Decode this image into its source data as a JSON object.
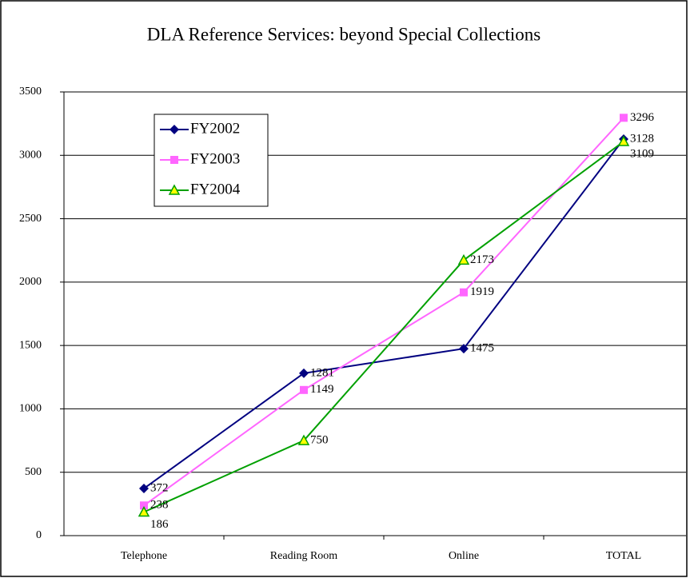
{
  "chart_data": {
    "type": "line",
    "title": "DLA Reference Services: beyond Special Collections",
    "categories": [
      "Telephone",
      "Reading Room",
      "Online",
      "TOTAL"
    ],
    "series": [
      {
        "name": "FY2002",
        "color": "#000080",
        "marker": "diamond",
        "values": [
          372,
          1281,
          1475,
          3128
        ]
      },
      {
        "name": "FY2003",
        "color": "#ff66ff",
        "marker": "square",
        "values": [
          238,
          1149,
          1919,
          3296
        ]
      },
      {
        "name": "FY2004",
        "color": "#00a000",
        "marker": "triangle",
        "values": [
          186,
          750,
          2173,
          3109
        ]
      }
    ],
    "ylim": [
      0,
      3500
    ],
    "yticks": [
      0,
      500,
      1000,
      1500,
      2000,
      2500,
      3000,
      3500
    ],
    "grid": true,
    "legend": "upper left"
  }
}
